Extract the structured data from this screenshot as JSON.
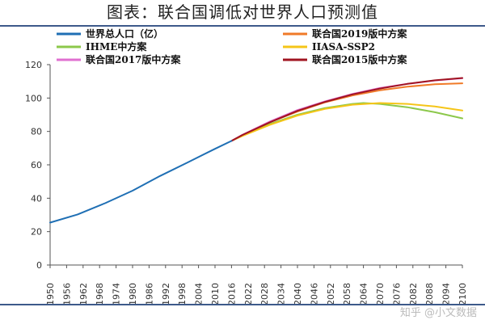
{
  "title": "图表：联合国调低对世界人口预测值",
  "watermark": "知乎 @小文数据",
  "chart_data": {
    "type": "line",
    "title": "图表：联合国调低对世界人口预测值",
    "xlabel": "",
    "ylabel": "",
    "xlim": [
      1950,
      2100
    ],
    "ylim": [
      0,
      120
    ],
    "yticks": [
      0,
      20,
      40,
      60,
      80,
      100,
      120
    ],
    "xticks": [
      1950,
      1956,
      1962,
      1968,
      1974,
      1980,
      1986,
      1992,
      1998,
      2004,
      2010,
      2016,
      2022,
      2028,
      2034,
      2040,
      2046,
      2052,
      2058,
      2064,
      2070,
      2076,
      2082,
      2088,
      2094,
      2100
    ],
    "grid": false,
    "legend_position": "top",
    "series": [
      {
        "name": "世界总人口（亿）",
        "color": "#1f6fb4",
        "x": [
          1950,
          1960,
          1970,
          1980,
          1990,
          2000,
          2010,
          2016
        ],
        "y": [
          25.4,
          30.3,
          37.0,
          44.5,
          53.3,
          61.4,
          69.6,
          74.3
        ]
      },
      {
        "name": "联合国2019版中方案",
        "color": "#f07a28",
        "x": [
          2016,
          2020,
          2030,
          2040,
          2050,
          2060,
          2070,
          2080,
          2090,
          2100
        ],
        "y": [
          74.3,
          77.9,
          85.5,
          91.9,
          97.4,
          101.5,
          104.6,
          106.8,
          108.3,
          108.8
        ]
      },
      {
        "name": "IHME中方案",
        "color": "#8cc84b",
        "x": [
          2016,
          2020,
          2030,
          2040,
          2050,
          2060,
          2064,
          2070,
          2080,
          2090,
          2100
        ],
        "y": [
          74.3,
          77.5,
          84.5,
          90.0,
          94.0,
          96.5,
          97.0,
          96.5,
          94.5,
          91.5,
          87.8
        ]
      },
      {
        "name": "IIASA-SSP2",
        "color": "#f5c518",
        "x": [
          2016,
          2020,
          2030,
          2040,
          2050,
          2060,
          2070,
          2080,
          2090,
          2100
        ],
        "y": [
          74.3,
          77.3,
          84.0,
          89.5,
          93.5,
          96.0,
          97.0,
          96.5,
          95.0,
          92.5
        ]
      },
      {
        "name": "联合国2017版中方案",
        "color": "#e070d0",
        "x": [
          2016,
          2020,
          2030,
          2040,
          2050,
          2060,
          2070,
          2080,
          2090,
          2100
        ],
        "y": [
          74.3,
          78.0,
          86.0,
          92.8,
          98.0,
          102.5,
          106.0,
          108.5,
          110.5,
          111.8
        ]
      },
      {
        "name": "联合国2015版中方案",
        "color": "#a01421",
        "x": [
          2016,
          2020,
          2030,
          2040,
          2050,
          2060,
          2070,
          2080,
          2090,
          2100
        ],
        "y": [
          74.3,
          77.9,
          85.5,
          92.3,
          97.7,
          102.2,
          105.7,
          108.5,
          110.6,
          112.0
        ]
      }
    ]
  }
}
